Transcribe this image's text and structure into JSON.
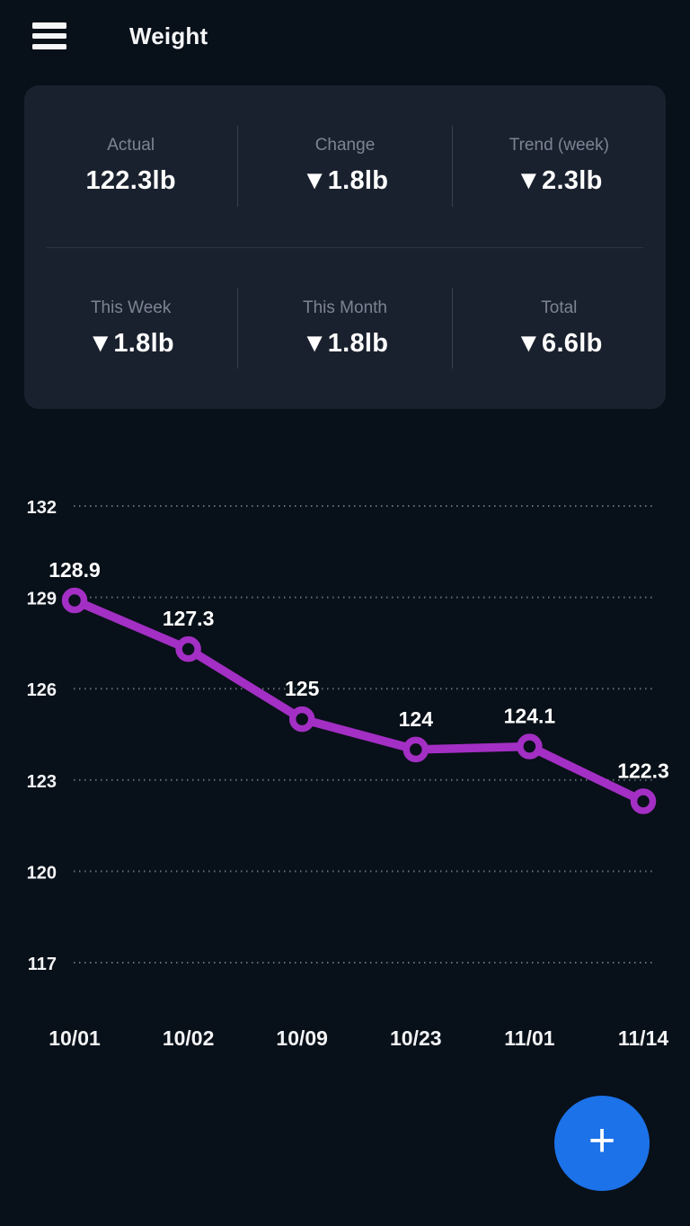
{
  "header": {
    "title": "Weight"
  },
  "stats": {
    "cells": [
      {
        "label": "Actual",
        "value": "122.3lb"
      },
      {
        "label": "Change",
        "value": "▼1.8lb"
      },
      {
        "label": "Trend (week)",
        "value": "▼2.3lb"
      },
      {
        "label": "This Week",
        "value": "▼1.8lb"
      },
      {
        "label": "This Month",
        "value": "▼1.8lb"
      },
      {
        "label": "Total",
        "value": "▼6.6lb"
      }
    ]
  },
  "fab": {
    "label": "+"
  },
  "colors": {
    "background": "#081019",
    "card": "#1a212e",
    "accent_line": "#a32fc4",
    "fab": "#1c72e8",
    "muted_label": "#7c8392"
  },
  "chart_data": {
    "type": "line",
    "title": "",
    "xlabel": "",
    "ylabel": "",
    "categories": [
      "10/01",
      "10/02",
      "10/09",
      "10/23",
      "11/01",
      "11/14"
    ],
    "values": [
      128.9,
      127.3,
      125,
      124,
      124.1,
      122.3
    ],
    "point_labels": [
      "128.9",
      "127.3",
      "125",
      "124",
      "124.1",
      "122.3"
    ],
    "series_name": "Weight (lb)",
    "ylim": [
      117,
      132
    ],
    "yticks": [
      132,
      129,
      126,
      123,
      120,
      117
    ],
    "grid": "horizontal-dotted",
    "legend": "none",
    "line_color": "#a32fc4",
    "marker_fill": "#081019"
  }
}
